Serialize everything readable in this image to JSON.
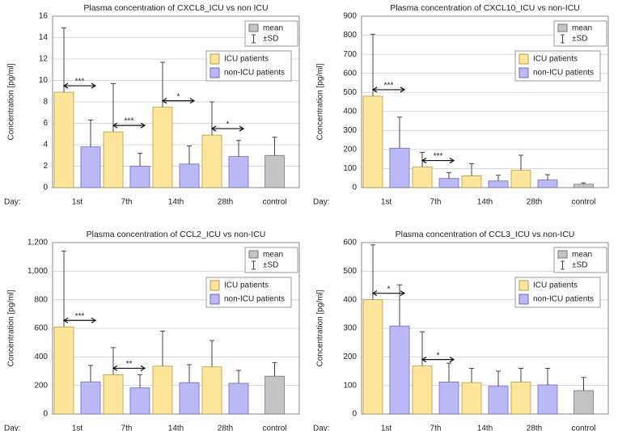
{
  "chart_data": [
    {
      "type": "bar",
      "title": "Plasma concentration of CXCL8_ICU vs non ICU",
      "ylabel": "Concentration [pg/ml]",
      "xlabel": "Day:",
      "categories": [
        "1st",
        "7th",
        "14th",
        "28th",
        "control"
      ],
      "series": [
        {
          "name": "ICU patients",
          "color": "#fde699",
          "values": [
            8.9,
            5.2,
            7.5,
            4.9,
            null
          ],
          "errors": [
            6.0,
            4.5,
            4.2,
            3.1,
            null
          ]
        },
        {
          "name": "non-ICU patients",
          "color": "#bcb8f6",
          "values": [
            3.8,
            2.0,
            2.2,
            2.9,
            null
          ],
          "errors": [
            2.5,
            1.2,
            1.7,
            1.5,
            null
          ]
        },
        {
          "name": "mean",
          "color": "#c4c4c4",
          "values": [
            null,
            null,
            null,
            null,
            3.0
          ],
          "errors": [
            null,
            null,
            null,
            null,
            1.7
          ]
        }
      ],
      "error_legend": "±SD",
      "ylim": [
        0,
        16
      ],
      "yticks": [
        0,
        2,
        4,
        6,
        8,
        10,
        12,
        14,
        16
      ],
      "grid": true,
      "annotations": [
        {
          "category": "1st",
          "text": "***"
        },
        {
          "category": "7th",
          "text": "***"
        },
        {
          "category": "14th",
          "text": "*"
        },
        {
          "category": "28th",
          "text": "*"
        }
      ]
    },
    {
      "type": "bar",
      "title": "Plasma concentration of CXCL10_ICU vs non-ICU",
      "ylabel": "Concentration [pg/ml]",
      "xlabel": "Day:",
      "categories": [
        "1st",
        "7th",
        "14th",
        "28th",
        "control"
      ],
      "series": [
        {
          "name": "ICU patients",
          "color": "#fde699",
          "values": [
            480,
            108,
            62,
            92,
            null
          ],
          "errors": [
            325,
            77,
            63,
            78,
            null
          ]
        },
        {
          "name": "non-ICU patients",
          "color": "#bcb8f6",
          "values": [
            207,
            48,
            35,
            40,
            null
          ],
          "errors": [
            163,
            30,
            30,
            28,
            null
          ]
        },
        {
          "name": "mean",
          "color": "#c4c4c4",
          "values": [
            null,
            null,
            null,
            null,
            18
          ],
          "errors": [
            null,
            null,
            null,
            null,
            7
          ]
        }
      ],
      "error_legend": "±SD",
      "ylim": [
        0,
        900
      ],
      "yticks": [
        0,
        100,
        200,
        300,
        400,
        500,
        600,
        700,
        800,
        900
      ],
      "grid": true,
      "annotations": [
        {
          "category": "1st",
          "text": "***"
        },
        {
          "category": "7th",
          "text": "***"
        }
      ]
    },
    {
      "type": "bar",
      "title": "Plasma concentration of CCL2_ICU vs non-ICU",
      "ylabel": "Concentration [pg/ml]",
      "xlabel": "Day:",
      "categories": [
        "1st",
        "7th",
        "14th",
        "28th",
        "control"
      ],
      "series": [
        {
          "name": "ICU patients",
          "color": "#fde699",
          "values": [
            610,
            275,
            335,
            330,
            null
          ],
          "errors": [
            530,
            190,
            245,
            185,
            null
          ]
        },
        {
          "name": "non-ICU patients",
          "color": "#bcb8f6",
          "values": [
            225,
            183,
            220,
            215,
            null
          ],
          "errors": [
            115,
            92,
            125,
            90,
            null
          ]
        },
        {
          "name": "mean",
          "color": "#c4c4c4",
          "values": [
            null,
            null,
            null,
            null,
            265
          ],
          "errors": [
            null,
            null,
            null,
            null,
            95
          ]
        }
      ],
      "error_legend": "±SD",
      "ylim": [
        0,
        1200
      ],
      "yticks": [
        0,
        200,
        400,
        600,
        800,
        {
          "value": 1000,
          "label": "1,000"
        },
        {
          "value": 1200,
          "label": "1,200"
        }
      ],
      "grid": true,
      "annotations": [
        {
          "category": "1st",
          "text": "***"
        },
        {
          "category": "7th",
          "text": "**"
        }
      ]
    },
    {
      "type": "bar",
      "title": "Plasma concentration of CCL3_ICU vs non-ICU",
      "ylabel": "Concentration [pg/ml]",
      "xlabel": "Day:",
      "categories": [
        "1st",
        "7th",
        "14th",
        "28th",
        "control"
      ],
      "series": [
        {
          "name": "ICU patients",
          "color": "#fde699",
          "values": [
            400,
            168,
            110,
            112,
            null
          ],
          "errors": [
            192,
            120,
            50,
            48,
            null
          ]
        },
        {
          "name": "non-ICU patients",
          "color": "#bcb8f6",
          "values": [
            308,
            112,
            97,
            102,
            null
          ],
          "errors": [
            144,
            66,
            53,
            58,
            null
          ]
        },
        {
          "name": "mean",
          "color": "#c4c4c4",
          "values": [
            null,
            null,
            null,
            null,
            82
          ],
          "errors": [
            null,
            null,
            null,
            null,
            46
          ]
        }
      ],
      "error_legend": "±SD",
      "ylim": [
        0,
        600
      ],
      "yticks": [
        0,
        100,
        200,
        300,
        400,
        500,
        600
      ],
      "grid": true,
      "annotations": [
        {
          "category": "1st",
          "text": "*"
        },
        {
          "category": "7th",
          "text": "*"
        }
      ]
    }
  ]
}
